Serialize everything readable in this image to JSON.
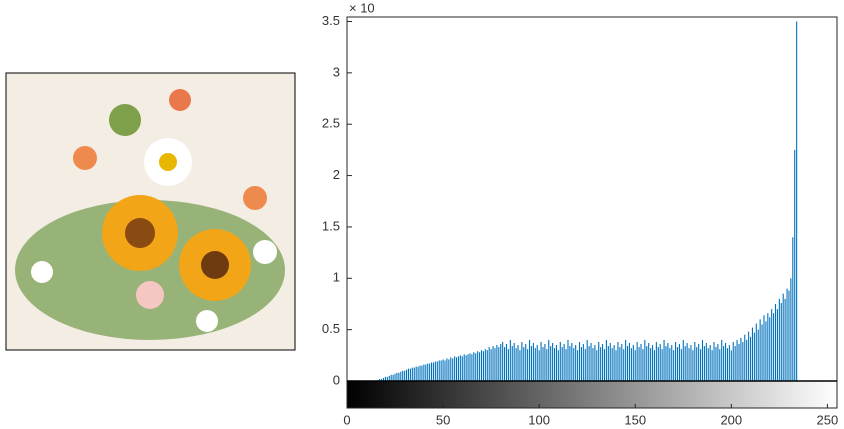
{
  "chart_data": {
    "type": "histogram",
    "exponent_label": "× 10",
    "xlim": [
      0,
      255
    ],
    "xticks": [
      0,
      50,
      100,
      150,
      200,
      250
    ],
    "ylim": [
      0,
      3.5
    ],
    "yticks": [
      0,
      0.5,
      1,
      1.5,
      2,
      2.5,
      3,
      3.5
    ],
    "color": "#0072bd",
    "values": [
      0,
      0,
      0,
      0,
      0,
      0,
      0,
      0,
      0,
      0,
      0,
      0,
      0,
      0,
      0,
      0,
      0.01,
      0.02,
      0.02,
      0.03,
      0.04,
      0.04,
      0.05,
      0.06,
      0.06,
      0.07,
      0.08,
      0.08,
      0.09,
      0.1,
      0.1,
      0.11,
      0.12,
      0.12,
      0.13,
      0.13,
      0.14,
      0.14,
      0.15,
      0.15,
      0.16,
      0.16,
      0.17,
      0.17,
      0.18,
      0.18,
      0.19,
      0.19,
      0.2,
      0.2,
      0.21,
      0.2,
      0.22,
      0.21,
      0.23,
      0.22,
      0.24,
      0.23,
      0.24,
      0.25,
      0.24,
      0.26,
      0.25,
      0.26,
      0.27,
      0.26,
      0.28,
      0.27,
      0.29,
      0.28,
      0.3,
      0.29,
      0.31,
      0.3,
      0.33,
      0.31,
      0.34,
      0.32,
      0.35,
      0.33,
      0.36,
      0.38,
      0.33,
      0.36,
      0.31,
      0.4,
      0.34,
      0.37,
      0.32,
      0.35,
      0.3,
      0.38,
      0.33,
      0.36,
      0.31,
      0.4,
      0.34,
      0.37,
      0.32,
      0.35,
      0.3,
      0.38,
      0.33,
      0.36,
      0.31,
      0.4,
      0.34,
      0.37,
      0.32,
      0.35,
      0.3,
      0.38,
      0.33,
      0.36,
      0.31,
      0.4,
      0.34,
      0.37,
      0.32,
      0.35,
      0.3,
      0.38,
      0.33,
      0.36,
      0.31,
      0.4,
      0.34,
      0.37,
      0.32,
      0.35,
      0.3,
      0.38,
      0.33,
      0.36,
      0.31,
      0.4,
      0.34,
      0.37,
      0.32,
      0.35,
      0.3,
      0.38,
      0.33,
      0.36,
      0.31,
      0.4,
      0.34,
      0.37,
      0.32,
      0.35,
      0.3,
      0.38,
      0.33,
      0.36,
      0.31,
      0.4,
      0.34,
      0.37,
      0.32,
      0.35,
      0.3,
      0.38,
      0.33,
      0.36,
      0.31,
      0.4,
      0.34,
      0.37,
      0.32,
      0.35,
      0.3,
      0.38,
      0.33,
      0.36,
      0.31,
      0.4,
      0.34,
      0.37,
      0.32,
      0.35,
      0.3,
      0.38,
      0.33,
      0.36,
      0.31,
      0.4,
      0.34,
      0.37,
      0.32,
      0.35,
      0.3,
      0.38,
      0.33,
      0.36,
      0.31,
      0.4,
      0.34,
      0.37,
      0.32,
      0.35,
      0.3,
      0.38,
      0.34,
      0.4,
      0.36,
      0.42,
      0.38,
      0.45,
      0.4,
      0.48,
      0.43,
      0.52,
      0.47,
      0.56,
      0.5,
      0.6,
      0.55,
      0.64,
      0.58,
      0.66,
      0.62,
      0.7,
      0.66,
      0.75,
      0.7,
      0.8,
      0.76,
      0.85,
      0.8,
      0.9,
      0.88,
      1.0,
      1.4,
      2.25,
      3.5,
      0,
      0,
      0,
      0,
      0,
      0,
      0,
      0,
      0,
      0,
      0,
      0,
      0,
      0,
      0,
      0,
      0,
      0,
      0,
      0,
      0
    ]
  }
}
